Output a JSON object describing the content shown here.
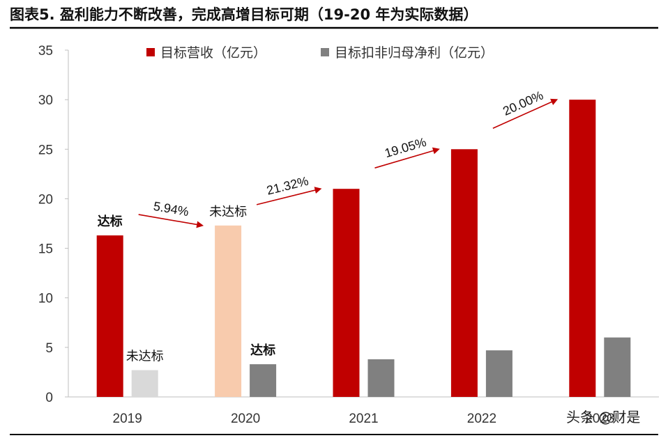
{
  "title": "图表5.    盈利能力不断改善，完成高增目标可期（19-20 年为实际数据）",
  "watermark": "头条 @财是",
  "colors": {
    "revenue": "#C00000",
    "profit": "#808080",
    "revenue_missed": "#F8CBAD",
    "profit_missed": "#D9D9D9",
    "arrow": "#C00000"
  },
  "chart_data": {
    "type": "bar",
    "title": "图表5.    盈利能力不断改善，完成高增目标可期（19-20 年为实际数据）",
    "xlabel": "",
    "ylabel": "",
    "categories": [
      "2019",
      "2020",
      "2021",
      "2022",
      "2023"
    ],
    "ylim": [
      0,
      35
    ],
    "yticks": [
      0,
      5,
      10,
      15,
      20,
      25,
      30,
      35
    ],
    "grid": false,
    "legend_position": "top",
    "series": [
      {
        "name": "目标营收（亿元）",
        "values": [
          16.3,
          17.3,
          21,
          25,
          30
        ]
      },
      {
        "name": "目标扣非归母净利（亿元）",
        "values": [
          2.7,
          3.3,
          3.8,
          4.7,
          6
        ]
      }
    ],
    "status_labels": [
      {
        "series": 0,
        "index": 0,
        "text": "达标",
        "bold": true
      },
      {
        "series": 1,
        "index": 0,
        "text": "未达标",
        "bold": false
      },
      {
        "series": 0,
        "index": 1,
        "text": "未达标",
        "bold": false
      },
      {
        "series": 1,
        "index": 1,
        "text": "达标",
        "bold": true
      }
    ],
    "growth_annotations": [
      {
        "from": 0,
        "to": 1,
        "text": "5.94%"
      },
      {
        "from": 1,
        "to": 2,
        "text": "21.32%"
      },
      {
        "from": 2,
        "to": 3,
        "text": "19.05%"
      },
      {
        "from": 3,
        "to": 4,
        "text": "20.00%"
      }
    ]
  }
}
